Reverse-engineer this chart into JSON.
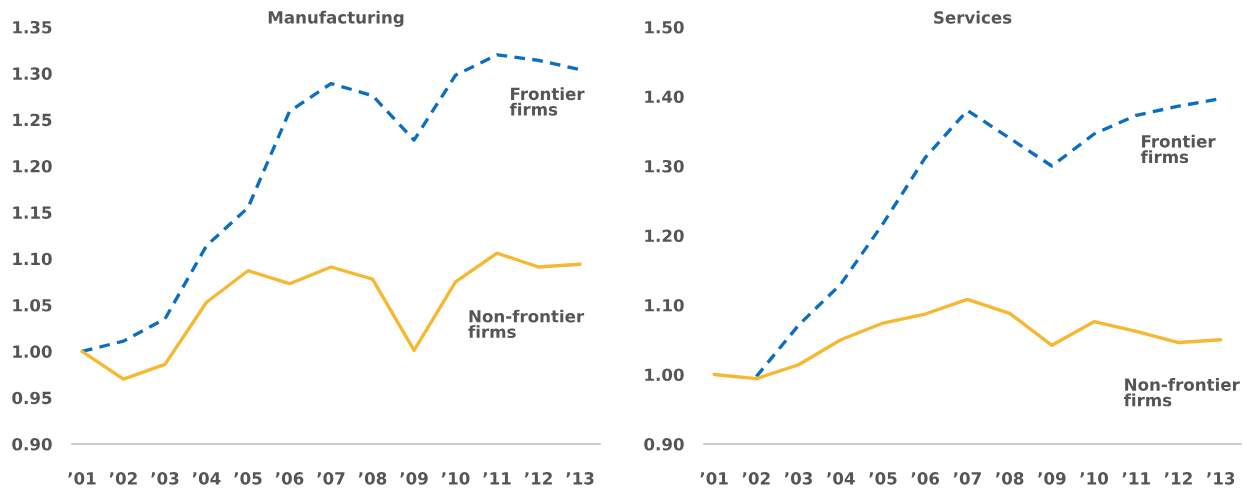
{
  "chart_data": [
    {
      "type": "line",
      "title": "Manufacturing",
      "categories": [
        "’01",
        "’02",
        "’03",
        "’04",
        "’05",
        "’06",
        "’07",
        "’08",
        "’09",
        "’10",
        "’11",
        "’12",
        "’13"
      ],
      "series": [
        {
          "name": "Frontier firms",
          "color": "#0a6fc2",
          "line_style": "dashed",
          "values": [
            1.0,
            1.011,
            1.035,
            1.114,
            1.155,
            1.259,
            1.289,
            1.276,
            1.228,
            1.298,
            1.32,
            1.314,
            1.304
          ]
        },
        {
          "name": "Non-frontier firms",
          "color": "#f6b731",
          "line_style": "solid",
          "values": [
            1.0,
            0.97,
            0.986,
            1.053,
            1.087,
            1.073,
            1.091,
            1.078,
            1.001,
            1.075,
            1.106,
            1.091,
            1.094
          ]
        }
      ],
      "ylim": [
        0.9,
        1.35
      ],
      "yticks": [
        {
          "value": 0.9,
          "label": "0.90"
        },
        {
          "value": 0.95,
          "label": "0.95"
        },
        {
          "value": 1.0,
          "label": "1.00"
        },
        {
          "value": 1.05,
          "label": "1.05"
        },
        {
          "value": 1.1,
          "label": "1.10"
        },
        {
          "value": 1.15,
          "label": "1.15"
        },
        {
          "value": 1.2,
          "label": "1.20"
        },
        {
          "value": 1.25,
          "label": "1.25"
        },
        {
          "value": 1.3,
          "label": "1.30"
        },
        {
          "value": 1.35,
          "label": "1.35"
        }
      ]
    },
    {
      "type": "line",
      "title": "Services",
      "categories": [
        "’01",
        "’02",
        "’03",
        "’04",
        "’05",
        "’06",
        "’07",
        "’08",
        "’09",
        "’10",
        "’11",
        "’12",
        "’13"
      ],
      "series": [
        {
          "name": "Frontier firms",
          "color": "#0a6fc2",
          "line_style": "dashed",
          "values": [
            null,
            0.997,
            1.071,
            1.13,
            1.217,
            1.312,
            1.38,
            1.34,
            1.3,
            1.346,
            1.373,
            1.386,
            1.397
          ]
        },
        {
          "name": "Non-frontier firms",
          "color": "#f6b731",
          "line_style": "solid",
          "values": [
            1.0,
            0.994,
            1.014,
            1.05,
            1.074,
            1.087,
            1.108,
            1.088,
            1.042,
            1.076,
            1.062,
            1.046,
            1.05
          ]
        }
      ],
      "ylim": [
        0.9,
        1.5
      ],
      "yticks": [
        {
          "value": 0.9,
          "label": "0.90"
        },
        {
          "value": 1.0,
          "label": "1.00"
        },
        {
          "value": 1.1,
          "label": "1.10"
        },
        {
          "value": 1.2,
          "label": "1.20"
        },
        {
          "value": 1.3,
          "label": "1.30"
        },
        {
          "value": 1.4,
          "label": "1.40"
        },
        {
          "value": 1.5,
          "label": "1.50"
        }
      ]
    }
  ]
}
